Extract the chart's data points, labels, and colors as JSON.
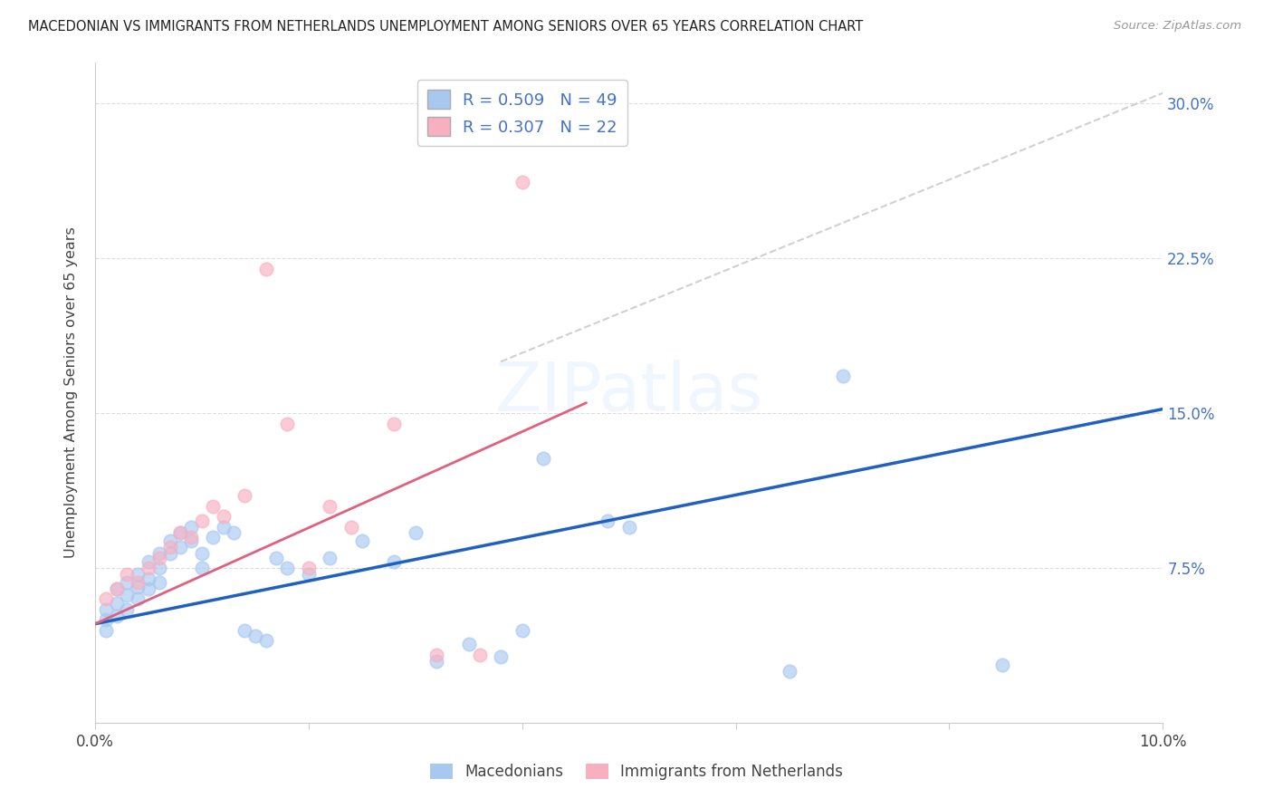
{
  "title": "MACEDONIAN VS IMMIGRANTS FROM NETHERLANDS UNEMPLOYMENT AMONG SENIORS OVER 65 YEARS CORRELATION CHART",
  "source": "Source: ZipAtlas.com",
  "ylabel": "Unemployment Among Seniors over 65 years",
  "xlim": [
    0.0,
    0.1
  ],
  "ylim": [
    0.0,
    0.32
  ],
  "ytick_positions": [
    0.0,
    0.075,
    0.15,
    0.225,
    0.3
  ],
  "ytick_labels": [
    "",
    "7.5%",
    "15.0%",
    "22.5%",
    "30.0%"
  ],
  "xtick_positions": [
    0.0,
    0.02,
    0.04,
    0.06,
    0.08,
    0.1
  ],
  "xtick_labels": [
    "0.0%",
    "",
    "",
    "",
    "",
    "10.0%"
  ],
  "blue_R": 0.509,
  "blue_N": 49,
  "pink_R": 0.307,
  "pink_N": 22,
  "blue_color": "#a8c8f0",
  "pink_color": "#f8b0c0",
  "blue_line_color": "#2060c0",
  "pink_line_color": "#e06080",
  "dashed_line_color": "#c8c8c8",
  "legend_label_blue": "Macedonians",
  "legend_label_pink": "Immigrants from Netherlands",
  "blue_line_x": [
    0.0,
    0.1
  ],
  "blue_line_y": [
    0.048,
    0.152
  ],
  "pink_line_x": [
    0.0,
    0.046
  ],
  "pink_line_y": [
    0.048,
    0.155
  ],
  "dashed_line_x": [
    0.038,
    0.1
  ],
  "dashed_line_y": [
    0.175,
    0.305
  ],
  "blue_x": [
    0.001,
    0.001,
    0.001,
    0.002,
    0.002,
    0.002,
    0.003,
    0.003,
    0.003,
    0.004,
    0.004,
    0.004,
    0.005,
    0.005,
    0.005,
    0.006,
    0.006,
    0.006,
    0.007,
    0.007,
    0.008,
    0.008,
    0.009,
    0.009,
    0.01,
    0.01,
    0.011,
    0.012,
    0.013,
    0.014,
    0.015,
    0.016,
    0.017,
    0.018,
    0.02,
    0.022,
    0.025,
    0.028,
    0.03,
    0.032,
    0.035,
    0.038,
    0.04,
    0.042,
    0.048,
    0.05,
    0.065,
    0.07,
    0.085
  ],
  "blue_y": [
    0.055,
    0.05,
    0.045,
    0.065,
    0.058,
    0.052,
    0.068,
    0.062,
    0.055,
    0.072,
    0.066,
    0.06,
    0.078,
    0.07,
    0.065,
    0.082,
    0.075,
    0.068,
    0.088,
    0.082,
    0.092,
    0.085,
    0.095,
    0.088,
    0.082,
    0.075,
    0.09,
    0.095,
    0.092,
    0.045,
    0.042,
    0.04,
    0.08,
    0.075,
    0.072,
    0.08,
    0.088,
    0.078,
    0.092,
    0.03,
    0.038,
    0.032,
    0.045,
    0.128,
    0.098,
    0.095,
    0.025,
    0.168,
    0.028
  ],
  "pink_x": [
    0.001,
    0.002,
    0.003,
    0.004,
    0.005,
    0.006,
    0.007,
    0.008,
    0.009,
    0.01,
    0.011,
    0.012,
    0.014,
    0.016,
    0.018,
    0.02,
    0.022,
    0.024,
    0.028,
    0.032,
    0.036,
    0.04
  ],
  "pink_y": [
    0.06,
    0.065,
    0.072,
    0.068,
    0.075,
    0.08,
    0.085,
    0.092,
    0.09,
    0.098,
    0.105,
    0.1,
    0.11,
    0.22,
    0.145,
    0.075,
    0.105,
    0.095,
    0.145,
    0.033,
    0.033,
    0.262
  ],
  "watermark": "ZIPatlas",
  "background_color": "#ffffff",
  "grid_color": "#dddddd"
}
